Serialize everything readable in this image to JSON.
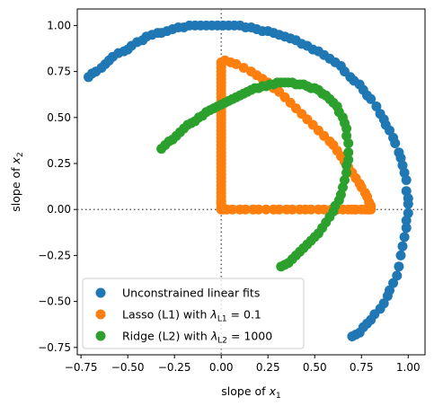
{
  "chart_data": {
    "type": "scatter",
    "xlabel_parts": [
      "slope of ",
      "x",
      "1"
    ],
    "ylabel_parts": [
      "slope of ",
      "x",
      "2"
    ],
    "xlim": [
      -0.77,
      1.09
    ],
    "ylim": [
      -0.79,
      1.09
    ],
    "xticks": [
      -0.75,
      -0.5,
      -0.25,
      0.0,
      0.25,
      0.5,
      0.75,
      1.0
    ],
    "yticks": [
      -0.75,
      -0.5,
      -0.25,
      0.0,
      0.25,
      0.5,
      0.75,
      1.0
    ],
    "xtick_labels": [
      "−0.75",
      "−0.50",
      "−0.25",
      "0.00",
      "0.25",
      "0.50",
      "0.75",
      "1.00"
    ],
    "ytick_labels": [
      "−0.75",
      "−0.50",
      "−0.25",
      "0.00",
      "0.25",
      "0.50",
      "0.75",
      "1.00"
    ],
    "reference_lines": {
      "x": 0,
      "y": 0,
      "style": "dotted",
      "color": "#666666"
    },
    "grid": false,
    "legend_position": "lower-left",
    "series": [
      {
        "name": "Unconstrained linear fits",
        "legend_parts": [
          "Unconstrained linear fits"
        ],
        "color": "#1f77b4",
        "x": [
          -0.71,
          -0.69,
          -0.67,
          -0.64,
          -0.62,
          -0.6,
          -0.58,
          -0.55,
          -0.52,
          -0.5,
          -0.48,
          -0.45,
          -0.42,
          -0.4,
          -0.37,
          -0.34,
          -0.32,
          -0.29,
          -0.26,
          -0.23,
          -0.2,
          -0.17,
          -0.14,
          -0.11,
          -0.08,
          -0.05,
          -0.02,
          0.01,
          0.04,
          0.07,
          0.1,
          0.13,
          0.16,
          0.19,
          0.22,
          0.25,
          0.28,
          0.31,
          0.34,
          0.37,
          0.4,
          0.43,
          0.46,
          0.49,
          0.52,
          0.55,
          0.58,
          0.61,
          0.64,
          0.66,
          0.69,
          0.71,
          0.74,
          0.76,
          0.78,
          0.8,
          0.83,
          0.85,
          0.87,
          0.88,
          0.9,
          0.92,
          0.93,
          0.95,
          0.96,
          0.97,
          0.98,
          0.99,
          0.99,
          1.0,
          1.0,
          1.0,
          0.99,
          0.99,
          0.98,
          0.97,
          0.96,
          0.95,
          0.94,
          0.92,
          0.9,
          0.89,
          0.87,
          0.85,
          0.82,
          0.8,
          0.78,
          0.76,
          0.74,
          0.72,
          0.7
        ],
        "y": [
          0.72,
          0.74,
          0.75,
          0.77,
          0.79,
          0.81,
          0.83,
          0.85,
          0.86,
          0.87,
          0.89,
          0.91,
          0.92,
          0.94,
          0.95,
          0.96,
          0.96,
          0.97,
          0.98,
          0.99,
          0.99,
          1.0,
          1.0,
          1.0,
          1.0,
          1.0,
          1.0,
          1.0,
          1.0,
          1.0,
          1.0,
          0.99,
          0.99,
          0.98,
          0.97,
          0.97,
          0.96,
          0.95,
          0.94,
          0.93,
          0.92,
          0.9,
          0.89,
          0.87,
          0.86,
          0.84,
          0.82,
          0.8,
          0.78,
          0.75,
          0.72,
          0.7,
          0.68,
          0.65,
          0.62,
          0.6,
          0.56,
          0.52,
          0.49,
          0.46,
          0.43,
          0.39,
          0.36,
          0.31,
          0.28,
          0.24,
          0.2,
          0.16,
          0.1,
          0.06,
          0.03,
          -0.02,
          -0.06,
          -0.1,
          -0.15,
          -0.2,
          -0.25,
          -0.31,
          -0.36,
          -0.4,
          -0.44,
          -0.47,
          -0.51,
          -0.54,
          -0.57,
          -0.6,
          -0.62,
          -0.64,
          -0.67,
          -0.68,
          -0.69
        ]
      },
      {
        "name": "Lasso (L1) with λL1 = 0.1",
        "legend_parts": [
          "Lasso (L1) with ",
          "λ",
          "L1",
          " = 0.1"
        ],
        "color": "#ff7f0e",
        "x": [
          0.0,
          0.0,
          0.0,
          0.0,
          0.0,
          0.0,
          0.0,
          0.0,
          0.0,
          0.0,
          0.0,
          0.0,
          0.0,
          0.0,
          0.0,
          0.0,
          0.0,
          0.0,
          0.0,
          0.0,
          0.0,
          0.0,
          0.0,
          0.0,
          0.0,
          0.0,
          0.0,
          0.0,
          0.0,
          0.0,
          0.0,
          0.0,
          0.0,
          0.0,
          0.0,
          0.0,
          0.0,
          0.0,
          0.0,
          0.0,
          0.0,
          0.0,
          0.0,
          0.02,
          0.05,
          0.08,
          0.12,
          0.16,
          0.19,
          0.22,
          0.25,
          0.28,
          0.31,
          0.34,
          0.37,
          0.4,
          0.43,
          0.46,
          0.49,
          0.52,
          0.55,
          0.58,
          0.6,
          0.62,
          0.64,
          0.66,
          0.68,
          0.7,
          0.72,
          0.74,
          0.75,
          0.77,
          0.78,
          0.79,
          0.8,
          0.8,
          0.79,
          0.78,
          0.77,
          0.75,
          0.72,
          0.7,
          0.68,
          0.65,
          0.62,
          0.59,
          0.55,
          0.52,
          0.48,
          0.45,
          0.42,
          0.38,
          0.35,
          0.31,
          0.28,
          0.24,
          0.2,
          0.17,
          0.13,
          0.1,
          0.06,
          0.03,
          0.01
        ],
        "y": [
          0.8,
          0.79,
          0.77,
          0.75,
          0.73,
          0.71,
          0.69,
          0.67,
          0.65,
          0.63,
          0.61,
          0.59,
          0.57,
          0.55,
          0.53,
          0.51,
          0.49,
          0.47,
          0.45,
          0.43,
          0.41,
          0.39,
          0.37,
          0.35,
          0.33,
          0.31,
          0.29,
          0.27,
          0.25,
          0.23,
          0.21,
          0.19,
          0.17,
          0.15,
          0.13,
          0.11,
          0.09,
          0.07,
          0.05,
          0.04,
          0.03,
          0.01,
          0.0,
          0.81,
          0.8,
          0.79,
          0.77,
          0.75,
          0.73,
          0.71,
          0.69,
          0.66,
          0.64,
          0.61,
          0.58,
          0.55,
          0.52,
          0.49,
          0.46,
          0.43,
          0.4,
          0.37,
          0.35,
          0.32,
          0.29,
          0.26,
          0.23,
          0.2,
          0.17,
          0.14,
          0.12,
          0.09,
          0.07,
          0.04,
          0.02,
          0.0,
          0.0,
          0.0,
          0.0,
          0.0,
          0.0,
          0.0,
          0.0,
          0.0,
          0.0,
          0.0,
          0.0,
          0.0,
          0.0,
          0.0,
          0.0,
          0.0,
          0.0,
          0.0,
          0.0,
          0.0,
          0.0,
          0.0,
          0.0,
          0.0,
          0.0,
          0.0,
          0.0
        ]
      },
      {
        "name": "Ridge (L2) with λL2 = 1000",
        "legend_parts": [
          "Ridge (L2) with ",
          "λ",
          "L2",
          " = 1000"
        ],
        "color": "#2ca02c",
        "x": [
          -0.32,
          -0.3,
          -0.28,
          -0.26,
          -0.24,
          -0.22,
          -0.2,
          -0.18,
          -0.16,
          -0.14,
          -0.12,
          -0.1,
          -0.08,
          -0.06,
          -0.04,
          -0.02,
          0.0,
          0.02,
          0.04,
          0.06,
          0.08,
          0.1,
          0.12,
          0.14,
          0.16,
          0.18,
          0.2,
          0.22,
          0.24,
          0.26,
          0.28,
          0.3,
          0.32,
          0.34,
          0.36,
          0.38,
          0.4,
          0.42,
          0.44,
          0.46,
          0.48,
          0.5,
          0.52,
          0.54,
          0.56,
          0.58,
          0.6,
          0.62,
          0.63,
          0.65,
          0.66,
          0.67,
          0.67,
          0.68,
          0.68,
          0.68,
          0.67,
          0.67,
          0.66,
          0.65,
          0.64,
          0.63,
          0.61,
          0.6,
          0.58,
          0.56,
          0.54,
          0.52,
          0.5,
          0.48,
          0.46,
          0.44,
          0.42,
          0.4,
          0.38,
          0.36,
          0.34,
          0.32
        ],
        "y": [
          0.33,
          0.35,
          0.37,
          0.38,
          0.4,
          0.42,
          0.44,
          0.46,
          0.47,
          0.48,
          0.5,
          0.51,
          0.53,
          0.54,
          0.55,
          0.56,
          0.57,
          0.58,
          0.59,
          0.6,
          0.61,
          0.62,
          0.63,
          0.64,
          0.65,
          0.66,
          0.66,
          0.67,
          0.67,
          0.68,
          0.68,
          0.69,
          0.69,
          0.69,
          0.69,
          0.69,
          0.68,
          0.68,
          0.68,
          0.67,
          0.66,
          0.66,
          0.65,
          0.63,
          0.62,
          0.6,
          0.58,
          0.56,
          0.53,
          0.5,
          0.47,
          0.44,
          0.4,
          0.36,
          0.31,
          0.27,
          0.24,
          0.2,
          0.16,
          0.12,
          0.08,
          0.05,
          0.02,
          -0.01,
          -0.04,
          -0.07,
          -0.1,
          -0.13,
          -0.15,
          -0.17,
          -0.19,
          -0.21,
          -0.23,
          -0.25,
          -0.27,
          -0.29,
          -0.3,
          -0.31
        ]
      }
    ]
  }
}
